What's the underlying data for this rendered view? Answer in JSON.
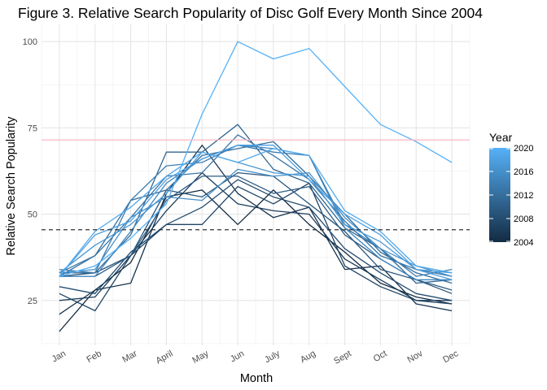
{
  "chart_data": {
    "type": "line",
    "title": "Figure 3. Relative Search Popularity of Disc Golf Every Month Since 2004",
    "xlabel": "Month",
    "ylabel": "Relative Search Popularity",
    "categories": [
      "Jan",
      "Feb",
      "Mar",
      "April",
      "May",
      "Jun",
      "July",
      "Aug",
      "Sept",
      "Oct",
      "Nov",
      "Dec"
    ],
    "ylim": [
      12,
      105
    ],
    "y_ticks": [
      25,
      50,
      75,
      100
    ],
    "y_tick_labels": [
      "25",
      "50",
      "75",
      "100"
    ],
    "grid": true,
    "reference_lines": [
      {
        "value": 71.5,
        "style": "solid",
        "color": "#ffb6c1"
      },
      {
        "value": 45.5,
        "style": "dashed",
        "color": "#333333"
      }
    ],
    "color_scale": {
      "title": "Year",
      "min": 2004,
      "max": 2020,
      "low_color": "#132b43",
      "high_color": "#56b1f7",
      "tick_values": [
        2004,
        2008,
        2012,
        2016,
        2020
      ],
      "tick_labels": [
        "2004",
        "2008",
        "2012",
        "2016",
        "2020"
      ],
      "placement": "right"
    },
    "series": [
      {
        "year": 2004,
        "values": [
          16,
          28,
          36,
          55,
          57,
          47,
          57,
          47,
          39,
          30,
          26,
          24
        ]
      },
      {
        "year": 2005,
        "values": [
          21,
          28,
          30,
          56,
          70,
          56,
          49,
          52,
          34,
          35,
          24,
          22
        ]
      },
      {
        "year": 2006,
        "values": [
          25,
          26,
          38,
          51,
          62,
          53,
          51,
          50,
          37,
          31,
          25,
          25
        ]
      },
      {
        "year": 2007,
        "values": [
          27,
          22,
          38,
          47,
          47,
          58,
          53,
          59,
          35,
          29,
          25,
          24
        ]
      },
      {
        "year": 2008,
        "values": [
          29,
          27,
          39,
          47,
          52,
          60,
          55,
          52,
          40,
          33,
          27,
          25
        ]
      },
      {
        "year": 2009,
        "values": [
          32,
          33,
          38,
          57,
          55,
          62,
          61,
          53,
          45,
          34,
          31,
          27
        ]
      },
      {
        "year": 2010,
        "values": [
          32,
          32,
          38,
          54,
          61,
          61,
          56,
          58,
          44,
          37,
          31,
          28
        ]
      },
      {
        "year": 2011,
        "values": [
          33,
          33,
          44,
          68,
          68,
          76,
          63,
          59,
          46,
          40,
          30,
          31
        ]
      },
      {
        "year": 2012,
        "values": [
          32,
          38,
          54,
          57,
          67,
          69,
          71,
          61,
          50,
          39,
          33,
          30
        ]
      },
      {
        "year": 2013,
        "values": [
          33,
          38,
          49,
          61,
          62,
          73,
          67,
          60,
          48,
          38,
          34,
          32
        ]
      },
      {
        "year": 2014,
        "values": [
          34,
          33,
          54,
          64,
          65,
          70,
          68,
          67,
          47,
          40,
          32,
          34
        ]
      },
      {
        "year": 2015,
        "values": [
          32,
          32,
          45,
          59,
          66,
          70,
          69,
          67,
          46,
          37,
          31,
          31
        ]
      },
      {
        "year": 2016,
        "values": [
          33,
          34,
          49,
          55,
          54,
          63,
          61,
          62,
          49,
          40,
          35,
          32
        ]
      },
      {
        "year": 2017,
        "values": [
          33,
          41,
          47,
          56,
          68,
          65,
          62,
          61,
          47,
          42,
          34,
          33
        ]
      },
      {
        "year": 2018,
        "values": [
          32,
          44,
          48,
          60,
          66,
          70,
          70,
          60,
          50,
          44,
          34,
          31
        ]
      },
      {
        "year": 2019,
        "values": [
          32,
          45,
          52,
          61,
          68,
          65,
          69,
          67,
          51,
          45,
          35,
          33
        ]
      },
      {
        "year": 2020,
        "values": [
          32,
          35,
          43,
          53,
          79,
          100,
          95,
          98,
          87,
          76,
          71,
          65
        ]
      }
    ]
  }
}
